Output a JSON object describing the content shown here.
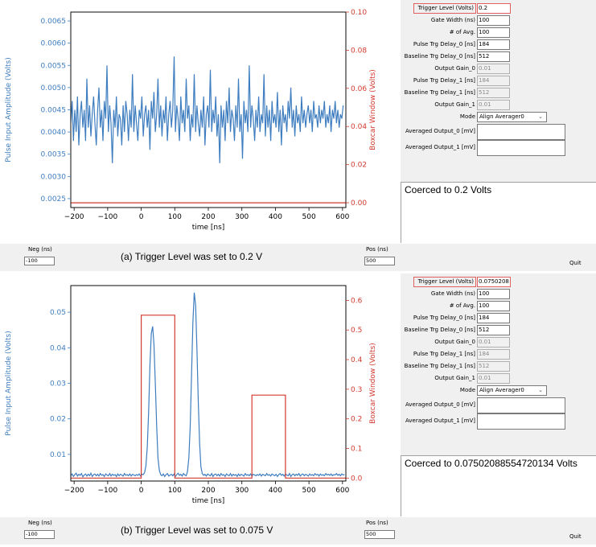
{
  "panels": [
    {
      "caption": "(a) Trigger Level was set to 0.2 V",
      "form": {
        "rows": [
          {
            "label": "Trigger Level (Volts)",
            "value": "0.2",
            "state": "trigger"
          },
          {
            "label": "Gate Width (ns)",
            "value": "100",
            "state": "normal"
          },
          {
            "label": "# of Avg.",
            "value": "100",
            "state": "normal"
          },
          {
            "label": "Pulse Trg Delay_0 [ns]",
            "value": "184",
            "state": "normal"
          },
          {
            "label": "Baseline Trg Delay_0 [ns]",
            "value": "512",
            "state": "normal"
          },
          {
            "label": "Output Gain_0",
            "value": "0.01",
            "state": "disabled"
          },
          {
            "label": "Pulse Trg Delay_1 [ns]",
            "value": "184",
            "state": "disabled"
          },
          {
            "label": "Baseline Trg Delay_1 [ns]",
            "value": "512",
            "state": "disabled"
          },
          {
            "label": "Output Gain_1",
            "value": "0.01",
            "state": "disabled"
          }
        ],
        "mode_label": "Mode",
        "mode_value": "Align Averager0",
        "avg_out_0_label": "Averaged Output_0 [mV]",
        "avg_out_1_label": "Averaged Output_1 [mV]"
      },
      "coerced_text": "Coerced to 0.2 Volts",
      "neg_label": "Neg (ns)",
      "neg_value": "-100",
      "pos_label": "Pos (ns)",
      "pos_value": "500",
      "quit_label": "Quit"
    },
    {
      "caption": "(b) Trigger Level was set to 0.075 V",
      "form": {
        "rows": [
          {
            "label": "Trigger Level (Volts)",
            "value": "0.0750208",
            "state": "trigger"
          },
          {
            "label": "Gate Width (ns)",
            "value": "100",
            "state": "normal"
          },
          {
            "label": "# of Avg.",
            "value": "100",
            "state": "normal"
          },
          {
            "label": "Pulse Trg Delay_0 [ns]",
            "value": "184",
            "state": "normal"
          },
          {
            "label": "Baseline Trg Delay_0 [ns]",
            "value": "512",
            "state": "normal"
          },
          {
            "label": "Output Gain_0",
            "value": "0.01",
            "state": "disabled"
          },
          {
            "label": "Pulse Trg Delay_1 [ns]",
            "value": "184",
            "state": "disabled"
          },
          {
            "label": "Baseline Trg Delay_1 [ns]",
            "value": "512",
            "state": "disabled"
          },
          {
            "label": "Output Gain_1",
            "value": "0.01",
            "state": "disabled"
          }
        ],
        "mode_label": "Mode",
        "mode_value": "Align Averager0",
        "avg_out_0_label": "Averaged Output_0 [mV]",
        "avg_out_1_label": "Averaged Output_1 [mV]"
      },
      "coerced_text": "Coerced to 0.07502088554720134 Volts",
      "neg_label": "Neg (ns)",
      "neg_value": "-100",
      "pos_label": "Pos (ns)",
      "pos_value": "500",
      "quit_label": "Quit"
    }
  ],
  "chart_data": [
    {
      "type": "line",
      "xlabel": "time [ns]",
      "ylabel": "Pulse Input Amplitude (Volts)",
      "y2label": "Boxcar Window (Volts)",
      "xlim": [
        -210,
        610
      ],
      "ylim": [
        0.0023,
        0.0067
      ],
      "y2lim": [
        -0.0025,
        0.1
      ],
      "xticks": [
        -200,
        -100,
        0,
        100,
        200,
        300,
        400,
        500,
        600
      ],
      "yticks": [
        0.0025,
        0.003,
        0.0035,
        0.004,
        0.0045,
        0.005,
        0.0055,
        0.006,
        0.0065
      ],
      "ytick_labels": [
        "0.0025",
        "0.0030",
        "0.0035",
        "0.0040",
        "0.0045",
        "0.0050",
        "0.0055",
        "0.0060",
        "0.0065"
      ],
      "y2ticks": [
        0.0,
        0.02,
        0.04,
        0.06,
        0.08,
        0.1
      ],
      "y2tick_labels": [
        "0.00",
        "0.02",
        "0.04",
        "0.06",
        "0.08",
        "0.10"
      ],
      "colors": {
        "primary": "#3e7dbf",
        "secondary": "#d33a2f"
      },
      "series": [
        {
          "axis": "y",
          "x_start": -210,
          "x_step": 4,
          "values": [
            0.0042,
            0.0047,
            0.0038,
            0.0045,
            0.004,
            0.0048,
            0.0037,
            0.0044,
            0.0047,
            0.0041,
            0.0045,
            0.0038,
            0.0052,
            0.0041,
            0.0046,
            0.0039,
            0.0044,
            0.0048,
            0.0042,
            0.0037,
            0.0045,
            0.005,
            0.0041,
            0.0045,
            0.0038,
            0.0047,
            0.0043,
            0.0055,
            0.004,
            0.0046,
            0.0042,
            0.0033,
            0.0045,
            0.0041,
            0.0048,
            0.0039,
            0.0044,
            0.0043,
            0.0037,
            0.0046,
            0.004,
            0.0047,
            0.0044,
            0.0038,
            0.0045,
            0.0041,
            0.0053,
            0.004,
            0.0046,
            0.0042,
            0.0038,
            0.0045,
            0.0043,
            0.0048,
            0.0039,
            0.0044,
            0.0046,
            0.0041,
            0.0045,
            0.0036,
            0.0047,
            0.0043,
            0.0049,
            0.004,
            0.0044,
            0.0052,
            0.0041,
            0.0046,
            0.0039,
            0.0045,
            0.0042,
            0.0048,
            0.0038,
            0.0044,
            0.0047,
            0.0041,
            0.0045,
            0.0057,
            0.004,
            0.0046,
            0.0043,
            0.0038,
            0.0048,
            0.0042,
            0.0045,
            0.004,
            0.0052,
            0.0043,
            0.0046,
            0.0038,
            0.0044,
            0.0041,
            0.0053,
            0.004,
            0.0046,
            0.0042,
            0.0039,
            0.0045,
            0.0041,
            0.0048,
            0.0037,
            0.0044,
            0.0046,
            0.0041,
            0.0054,
            0.004,
            0.0045,
            0.0042,
            0.0048,
            0.0039,
            0.0044,
            0.0033,
            0.0046,
            0.0041,
            0.0045,
            0.0038,
            0.0047,
            0.0042,
            0.005,
            0.004,
            0.0045,
            0.0043,
            0.0038,
            0.0046,
            0.0041,
            0.0052,
            0.004,
            0.0044,
            0.0034,
            0.0047,
            0.0042,
            0.0045,
            0.004,
            0.0055,
            0.0041,
            0.0046,
            0.0043,
            0.0038,
            0.0045,
            0.0041,
            0.0048,
            0.004,
            0.0044,
            0.0042,
            0.0053,
            0.0039,
            0.0046,
            0.0041,
            0.0045,
            0.0038,
            0.0047,
            0.0042,
            0.0044,
            0.0041,
            0.0049,
            0.004,
            0.0045,
            0.0037,
            0.0046,
            0.0042,
            0.0044,
            0.004,
            0.0047,
            0.0043,
            0.005,
            0.0041,
            0.0045,
            0.0039,
            0.0046,
            0.0042,
            0.0044,
            0.004,
            0.0048,
            0.0042,
            0.0045,
            0.0041,
            0.0044,
            0.0046,
            0.0042,
            0.0045,
            0.004,
            0.0047,
            0.0043,
            0.0044,
            0.0041,
            0.0046,
            0.0042,
            0.0045,
            0.0043,
            0.0047,
            0.0041,
            0.0044,
            0.0042,
            0.0046,
            0.004,
            0.0045,
            0.0043,
            0.0047,
            0.0042,
            0.0045,
            0.0041,
            0.0044,
            0.0043,
            0.0046
          ]
        },
        {
          "axis": "y2",
          "points": [
            [
              -210,
              0
            ],
            [
              610,
              0
            ]
          ]
        }
      ]
    },
    {
      "type": "line",
      "xlabel": "time [ns]",
      "ylabel": "Pulse Input Amplitude (Volts)",
      "y2label": "Boxcar Window (Volts)",
      "xlim": [
        -210,
        610
      ],
      "ylim": [
        0.0025,
        0.0575
      ],
      "y2lim": [
        -0.01,
        0.65
      ],
      "xticks": [
        -200,
        -100,
        0,
        100,
        200,
        300,
        400,
        500,
        600
      ],
      "yticks": [
        0.01,
        0.02,
        0.03,
        0.04,
        0.05
      ],
      "ytick_labels": [
        "0.01",
        "0.02",
        "0.03",
        "0.04",
        "0.05"
      ],
      "y2ticks": [
        0.0,
        0.1,
        0.2,
        0.3,
        0.4,
        0.5,
        0.6
      ],
      "y2tick_labels": [
        "0.0",
        "0.1",
        "0.2",
        "0.3",
        "0.4",
        "0.5",
        "0.6"
      ],
      "colors": {
        "primary": "#3e7dbf",
        "secondary": "#d33a2f"
      },
      "series": [
        {
          "axis": "y",
          "x_start": -210,
          "x_step": 4,
          "values": [
            0.004,
            0.0045,
            0.0038,
            0.0043,
            0.0047,
            0.0039,
            0.0044,
            0.0041,
            0.0046,
            0.0037,
            0.0042,
            0.0045,
            0.0039,
            0.0044,
            0.004,
            0.0047,
            0.0038,
            0.0043,
            0.0045,
            0.004,
            0.0044,
            0.0039,
            0.0046,
            0.0041,
            0.0043,
            0.0038,
            0.0045,
            0.0042,
            0.004,
            0.0046,
            0.0039,
            0.0044,
            0.0041,
            0.0043,
            0.0038,
            0.0045,
            0.004,
            0.0044,
            0.0042,
            0.0039,
            0.0046,
            0.0041,
            0.0043,
            0.004,
            0.0045,
            0.0039,
            0.0044,
            0.0042,
            0.004,
            0.0043,
            0.0041,
            0.0045,
            0.0039,
            0.0044,
            0.0043,
            0.0049,
            0.0068,
            0.012,
            0.022,
            0.035,
            0.044,
            0.046,
            0.041,
            0.03,
            0.018,
            0.009,
            0.0055,
            0.0043,
            0.004,
            0.0045,
            0.0038,
            0.0043,
            0.0046,
            0.0039,
            0.0042,
            0.0044,
            0.004,
            0.0045,
            0.0038,
            0.0043,
            0.0047,
            0.0041,
            0.0044,
            0.0039,
            0.0046,
            0.0042,
            0.004,
            0.0052,
            0.009,
            0.018,
            0.032,
            0.047,
            0.0555,
            0.052,
            0.04,
            0.025,
            0.013,
            0.0065,
            0.0046,
            0.0041,
            0.0044,
            0.0039,
            0.0045,
            0.0042,
            0.004,
            0.0046,
            0.0038,
            0.0043,
            0.0045,
            0.004,
            0.0044,
            0.0039,
            0.0046,
            0.0041,
            0.0043,
            0.0038,
            0.0045,
            0.0042,
            0.004,
            0.0046,
            0.0039,
            0.0044,
            0.0041,
            0.0043,
            0.0038,
            0.0045,
            0.004,
            0.0044,
            0.0042,
            0.0039,
            0.0046,
            0.0041,
            0.0043,
            0.004,
            0.0045,
            0.0039,
            0.0044,
            0.0042,
            0.004,
            0.0043,
            0.0041,
            0.0045,
            0.0039,
            0.0044,
            0.0042,
            0.004,
            0.0046,
            0.0041,
            0.0043,
            0.0039,
            0.0045,
            0.0042,
            0.004,
            0.0044,
            0.0038,
            0.0043,
            0.0046,
            0.0041,
            0.0044,
            0.0039,
            0.0045,
            0.0042,
            0.004,
            0.0046,
            0.0038,
            0.0043,
            0.0045,
            0.004,
            0.0044,
            0.0041,
            0.0046,
            0.0039,
            0.0043,
            0.0045,
            0.004,
            0.0044,
            0.0042,
            0.0039,
            0.0045,
            0.0041,
            0.0043,
            0.004,
            0.0046,
            0.0042,
            0.0044,
            0.0039,
            0.0045,
            0.0041,
            0.0043,
            0.004,
            0.0046,
            0.0042,
            0.0044,
            0.0041,
            0.0045,
            0.004,
            0.0043,
            0.0042,
            0.0046,
            0.0041,
            0.0044,
            0.004,
            0.0045,
            0.0042,
            0.0043
          ]
        },
        {
          "axis": "y2",
          "points": [
            [
              -210,
              0
            ],
            [
              0,
              0
            ],
            [
              0,
              0.55
            ],
            [
              100,
              0.55
            ],
            [
              100,
              0
            ],
            [
              330,
              0
            ],
            [
              330,
              0.28
            ],
            [
              430,
              0.28
            ],
            [
              430,
              0
            ],
            [
              610,
              0
            ]
          ]
        }
      ]
    }
  ]
}
